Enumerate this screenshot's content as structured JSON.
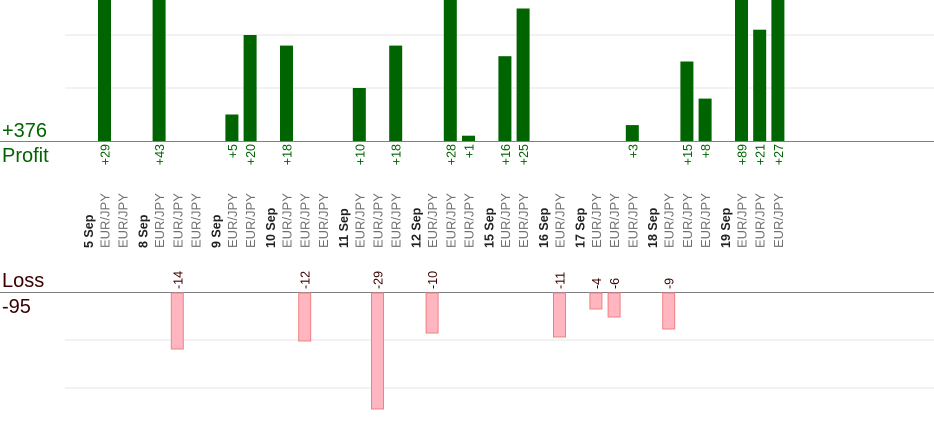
{
  "summary": {
    "profit_total": "+376",
    "profit_label": "Profit",
    "loss_label": "Loss",
    "loss_total": "-95"
  },
  "colors": {
    "profit_bar": "#006400",
    "profit_text": "#006400",
    "loss_bar": "#ffb6c1",
    "loss_bar_edge": "#f08080",
    "loss_text": "#3a0000",
    "grid": "#e6e6e6",
    "axis": "#808080",
    "date_text": "#222222",
    "pair_text": "#707070"
  },
  "chart_data": {
    "type": "bar",
    "title": "",
    "xlabel": "",
    "ylabel": "",
    "grid": true,
    "ylim_profit": [
      0,
      27
    ],
    "ylim_loss": [
      -24,
      0
    ],
    "days": [
      {
        "date": "5 Sep",
        "trades": [
          {
            "pair": "EUR/JPY",
            "label": "+29",
            "value": 29
          },
          {
            "pair": "EUR/JPY",
            "label": "",
            "value": 0
          }
        ]
      },
      {
        "date": "8 Sep",
        "trades": [
          {
            "pair": "EUR/JPY",
            "label": "+43",
            "value": 43
          },
          {
            "pair": "EUR/JPY",
            "label": "-14",
            "value": -14
          },
          {
            "pair": "EUR/JPY",
            "label": "",
            "value": 0
          }
        ]
      },
      {
        "date": "9 Sep",
        "trades": [
          {
            "pair": "EUR/JPY",
            "label": "+5",
            "value": 5
          },
          {
            "pair": "EUR/JPY",
            "label": "+20",
            "value": 20
          }
        ]
      },
      {
        "date": "10 Sep",
        "trades": [
          {
            "pair": "EUR/JPY",
            "label": "+18",
            "value": 18
          },
          {
            "pair": "EUR/JPY",
            "label": "-12",
            "value": -12
          },
          {
            "pair": "EUR/JPY",
            "label": "",
            "value": 0
          }
        ]
      },
      {
        "date": "11 Sep",
        "trades": [
          {
            "pair": "EUR/JPY",
            "label": "+10",
            "value": 10
          },
          {
            "pair": "EUR/JPY",
            "label": "-29",
            "value": -29
          },
          {
            "pair": "EUR/JPY",
            "label": "+18",
            "value": 18
          }
        ]
      },
      {
        "date": "12 Sep",
        "trades": [
          {
            "pair": "EUR/JPY",
            "label": "-10",
            "value": -10
          },
          {
            "pair": "EUR/JPY",
            "label": "+28",
            "value": 28
          },
          {
            "pair": "EUR/JPY",
            "label": "+1",
            "value": 1
          }
        ]
      },
      {
        "date": "15 Sep",
        "trades": [
          {
            "pair": "EUR/JPY",
            "label": "+16",
            "value": 16
          },
          {
            "pair": "EUR/JPY",
            "label": "+25",
            "value": 25
          }
        ]
      },
      {
        "date": "16 Sep",
        "trades": [
          {
            "pair": "EUR/JPY",
            "label": "-11",
            "value": -11
          }
        ]
      },
      {
        "date": "17 Sep",
        "trades": [
          {
            "pair": "EUR/JPY",
            "label": "-4",
            "value": -4
          },
          {
            "pair": "EUR/JPY",
            "label": "-6",
            "value": -6
          },
          {
            "pair": "EUR/JPY",
            "label": "+3",
            "value": 3
          }
        ]
      },
      {
        "date": "18 Sep",
        "trades": [
          {
            "pair": "EUR/JPY",
            "label": "-9",
            "value": -9
          },
          {
            "pair": "EUR/JPY",
            "label": "+15",
            "value": 15
          },
          {
            "pair": "EUR/JPY",
            "label": "+8",
            "value": 8
          }
        ]
      },
      {
        "date": "19 Sep",
        "trades": [
          {
            "pair": "EUR/JPY",
            "label": "+89",
            "value": 89
          },
          {
            "pair": "EUR/JPY",
            "label": "+21",
            "value": 21
          },
          {
            "pair": "EUR/JPY",
            "label": "+27",
            "value": 27
          }
        ]
      }
    ]
  }
}
